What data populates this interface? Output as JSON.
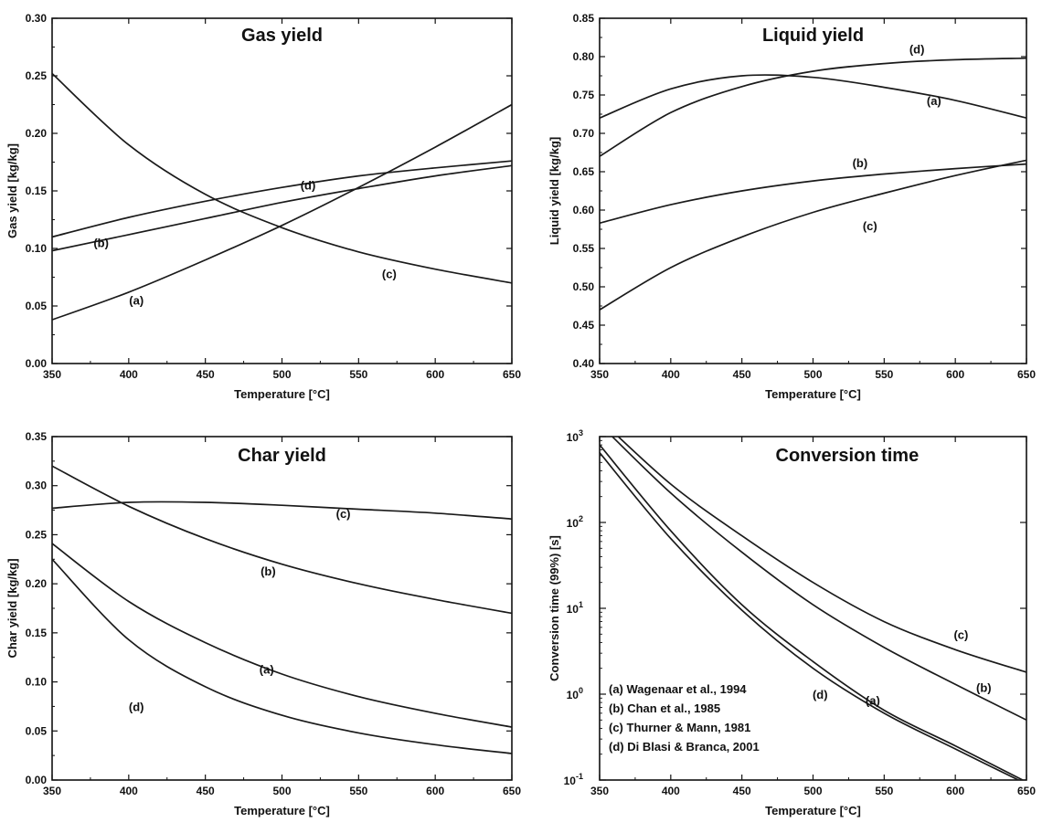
{
  "chart_data": [
    {
      "type": "line",
      "title": "Gas yield",
      "xlabel": "Temperature [°C]",
      "ylabel": "Gas yield [kg/kg]",
      "xlim": [
        350,
        650
      ],
      "ylim": [
        0,
        0.3
      ],
      "yscale": "linear",
      "xticks": [
        350,
        400,
        450,
        500,
        550,
        600,
        650
      ],
      "yticks": [
        "0.00",
        "0.05",
        "0.10",
        "0.15",
        "0.20",
        "0.25",
        "0.30"
      ],
      "x": [
        350,
        400,
        450,
        500,
        550,
        600,
        650
      ],
      "series": [
        {
          "name": "(a)",
          "values": [
            0.038,
            0.062,
            0.09,
            0.12,
            0.153,
            0.188,
            0.225
          ]
        },
        {
          "name": "(b)",
          "values": [
            0.098,
            0.112,
            0.126,
            0.14,
            0.152,
            0.163,
            0.172
          ]
        },
        {
          "name": "(c)",
          "values": [
            0.252,
            0.19,
            0.147,
            0.118,
            0.097,
            0.082,
            0.07
          ]
        },
        {
          "name": "(d)",
          "values": [
            0.11,
            0.127,
            0.141,
            0.153,
            0.163,
            0.17,
            0.176
          ]
        }
      ],
      "annotations": [
        {
          "text": "(a)",
          "x": 405,
          "y": 0.055
        },
        {
          "text": "(b)",
          "x": 382,
          "y": 0.105
        },
        {
          "text": "(c)",
          "x": 570,
          "y": 0.078
        },
        {
          "text": "(d)",
          "x": 517,
          "y": 0.155
        }
      ]
    },
    {
      "type": "line",
      "title": "Liquid yield",
      "xlabel": "Temperature [°C]",
      "ylabel": "Liquid yield [kg/kg]",
      "xlim": [
        350,
        650
      ],
      "ylim": [
        0.4,
        0.85
      ],
      "yscale": "linear",
      "xticks": [
        350,
        400,
        450,
        500,
        550,
        600,
        650
      ],
      "yticks": [
        "0.40",
        "0.45",
        "0.50",
        "0.55",
        "0.60",
        "0.65",
        "0.70",
        "0.75",
        "0.80",
        "0.85"
      ],
      "x": [
        350,
        400,
        450,
        500,
        550,
        600,
        650
      ],
      "series": [
        {
          "name": "(a)",
          "values": [
            0.72,
            0.758,
            0.775,
            0.773,
            0.76,
            0.743,
            0.72
          ]
        },
        {
          "name": "(b)",
          "values": [
            0.583,
            0.607,
            0.625,
            0.638,
            0.647,
            0.654,
            0.66
          ]
        },
        {
          "name": "(c)",
          "values": [
            0.47,
            0.525,
            0.565,
            0.597,
            0.622,
            0.645,
            0.665
          ]
        },
        {
          "name": "(d)",
          "values": [
            0.67,
            0.727,
            0.761,
            0.781,
            0.791,
            0.796,
            0.798
          ]
        }
      ],
      "annotations": [
        {
          "text": "(a)",
          "x": 585,
          "y": 0.743
        },
        {
          "text": "(b)",
          "x": 533,
          "y": 0.662
        },
        {
          "text": "(c)",
          "x": 540,
          "y": 0.58
        },
        {
          "text": "(d)",
          "x": 573,
          "y": 0.81
        }
      ]
    },
    {
      "type": "line",
      "title": "Char yield",
      "xlabel": "Temperature [°C]",
      "ylabel": "Char yield [kg/kg]",
      "xlim": [
        350,
        650
      ],
      "ylim": [
        0,
        0.35
      ],
      "yscale": "linear",
      "xticks": [
        350,
        400,
        450,
        500,
        550,
        600,
        650
      ],
      "yticks": [
        "0.00",
        "0.05",
        "0.10",
        "0.15",
        "0.20",
        "0.25",
        "0.30",
        "0.35"
      ],
      "x": [
        350,
        400,
        450,
        500,
        550,
        600,
        650
      ],
      "series": [
        {
          "name": "(a)",
          "values": [
            0.241,
            0.182,
            0.14,
            0.108,
            0.085,
            0.068,
            0.054
          ]
        },
        {
          "name": "(b)",
          "values": [
            0.32,
            0.279,
            0.246,
            0.22,
            0.2,
            0.184,
            0.17
          ]
        },
        {
          "name": "(c)",
          "values": [
            0.277,
            0.283,
            0.283,
            0.28,
            0.276,
            0.272,
            0.266
          ]
        },
        {
          "name": "(d)",
          "values": [
            0.225,
            0.143,
            0.095,
            0.066,
            0.048,
            0.036,
            0.027
          ]
        }
      ],
      "annotations": [
        {
          "text": "(a)",
          "x": 490,
          "y": 0.113
        },
        {
          "text": "(b)",
          "x": 491,
          "y": 0.213
        },
        {
          "text": "(c)",
          "x": 540,
          "y": 0.272
        },
        {
          "text": "(d)",
          "x": 405,
          "y": 0.075
        }
      ]
    },
    {
      "type": "line",
      "title": "Conversion time",
      "xlabel": "Temperature [°C]",
      "ylabel": "Conversion time (99%) [s]",
      "xlim": [
        350,
        650
      ],
      "ylim": [
        0.1,
        1000
      ],
      "yscale": "log",
      "xticks": [
        350,
        400,
        450,
        500,
        550,
        600,
        650
      ],
      "yticks": [
        {
          "base": "10",
          "exp": "-1"
        },
        {
          "base": "10",
          "exp": "0"
        },
        {
          "base": "10",
          "exp": "1"
        },
        {
          "base": "10",
          "exp": "2"
        },
        {
          "base": "10",
          "exp": "3"
        }
      ],
      "x": [
        350,
        400,
        450,
        500,
        550,
        600,
        650
      ],
      "series": [
        {
          "name": "(a)",
          "values": [
            800,
            80,
            11,
            2.4,
            0.65,
            0.25,
            0.095
          ]
        },
        {
          "name": "(b)",
          "values": [
            1400,
            220,
            45,
            11,
            3.5,
            1.3,
            0.5
          ]
        },
        {
          "name": "(c)",
          "values": [
            1600,
            280,
            70,
            20,
            7,
            3.3,
            1.8
          ]
        },
        {
          "name": "(d)",
          "values": [
            650,
            65,
            9.5,
            2,
            0.6,
            0.23,
            0.09
          ]
        }
      ],
      "legend": {
        "position": "bottom-left",
        "entries": [
          "(a) Wagenaar et al., 1994",
          "(b) Chan et al., 1985",
          "(c) Thurner & Mann, 1981",
          "(d) Di Blasi & Branca, 2001"
        ]
      },
      "annotations": [
        {
          "text": "(a)",
          "x": 542,
          "y": 0.85
        },
        {
          "text": "(b)",
          "x": 620,
          "y": 1.2
        },
        {
          "text": "(c)",
          "x": 604,
          "y": 5
        },
        {
          "text": "(d)",
          "x": 505,
          "y": 1.0
        }
      ]
    }
  ]
}
